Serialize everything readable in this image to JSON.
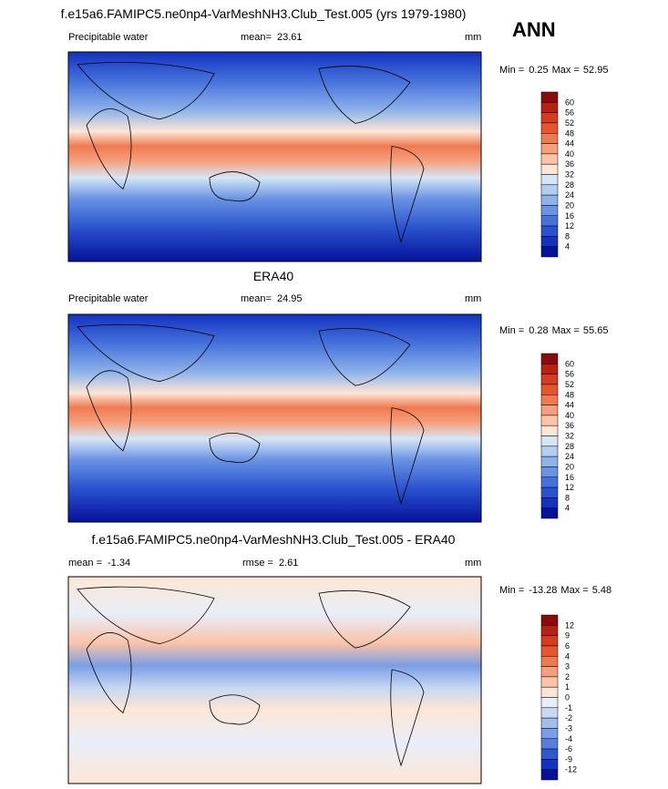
{
  "header": {
    "title": "f.e15a6.FAMIPC5.ne0np4-VarMeshNH3.Club_Test.005 (yrs 1979-1980)",
    "season": "ANN"
  },
  "panels": [
    {
      "label": "Precipitable water",
      "stats": [
        {
          "label": "mean=",
          "value": "23.61"
        }
      ],
      "units": "mm",
      "range": {
        "min_label": "Min =",
        "min": "0.25",
        "max_label": "Max =",
        "max": "52.95"
      },
      "colorbar": {
        "labels": [
          "60",
          "56",
          "52",
          "48",
          "44",
          "40",
          "36",
          "32",
          "28",
          "24",
          "20",
          "16",
          "12",
          "8",
          "4"
        ],
        "colors": [
          "#8b0a0a",
          "#b8200f",
          "#d73a1c",
          "#e6552d",
          "#ef7a52",
          "#f5a07c",
          "#fac4a8",
          "#fde6d6",
          "#d6e6f7",
          "#b3cef0",
          "#8fb3ea",
          "#6a93e3",
          "#4672db",
          "#2a52cf",
          "#1332c0",
          "#06129a"
        ]
      }
    },
    {
      "title": "ERA40",
      "label": "Precipitable water",
      "stats": [
        {
          "label": "mean=",
          "value": "24.95"
        }
      ],
      "units": "mm",
      "range": {
        "min_label": "Min =",
        "min": "0.28",
        "max_label": "Max =",
        "max": "55.65"
      },
      "colorbar": {
        "labels": [
          "60",
          "56",
          "52",
          "48",
          "44",
          "40",
          "36",
          "32",
          "28",
          "24",
          "20",
          "16",
          "12",
          "8",
          "4"
        ],
        "colors": [
          "#8b0a0a",
          "#b8200f",
          "#d73a1c",
          "#e6552d",
          "#ef7a52",
          "#f5a07c",
          "#fac4a8",
          "#fde6d6",
          "#d6e6f7",
          "#b3cef0",
          "#8fb3ea",
          "#6a93e3",
          "#4672db",
          "#2a52cf",
          "#1332c0",
          "#06129a"
        ]
      }
    },
    {
      "title": "f.e15a6.FAMIPC5.ne0np4-VarMeshNH3.Club_Test.005 - ERA40",
      "stats": [
        {
          "label": "mean =",
          "value": "-1.34"
        },
        {
          "label": "rmse =",
          "value": "2.61"
        }
      ],
      "units": "mm",
      "range": {
        "min_label": "Min =",
        "min": "-13.28",
        "max_label": "Max =",
        "max": "5.48"
      },
      "colorbar": {
        "labels": [
          "12",
          "9",
          "6",
          "4",
          "3",
          "2",
          "1",
          "0",
          "-1",
          "-2",
          "-3",
          "-4",
          "-6",
          "-9",
          "-12"
        ],
        "colors": [
          "#8b0a0a",
          "#b8200f",
          "#d73a1c",
          "#e6552d",
          "#ef7a52",
          "#f5a07c",
          "#fac4a8",
          "#fde6d6",
          "#e8eef9",
          "#c8d8f2",
          "#a0bdec",
          "#7b9ee4",
          "#567fdc",
          "#2f59d0",
          "#1232c0",
          "#06129a"
        ]
      }
    }
  ]
}
